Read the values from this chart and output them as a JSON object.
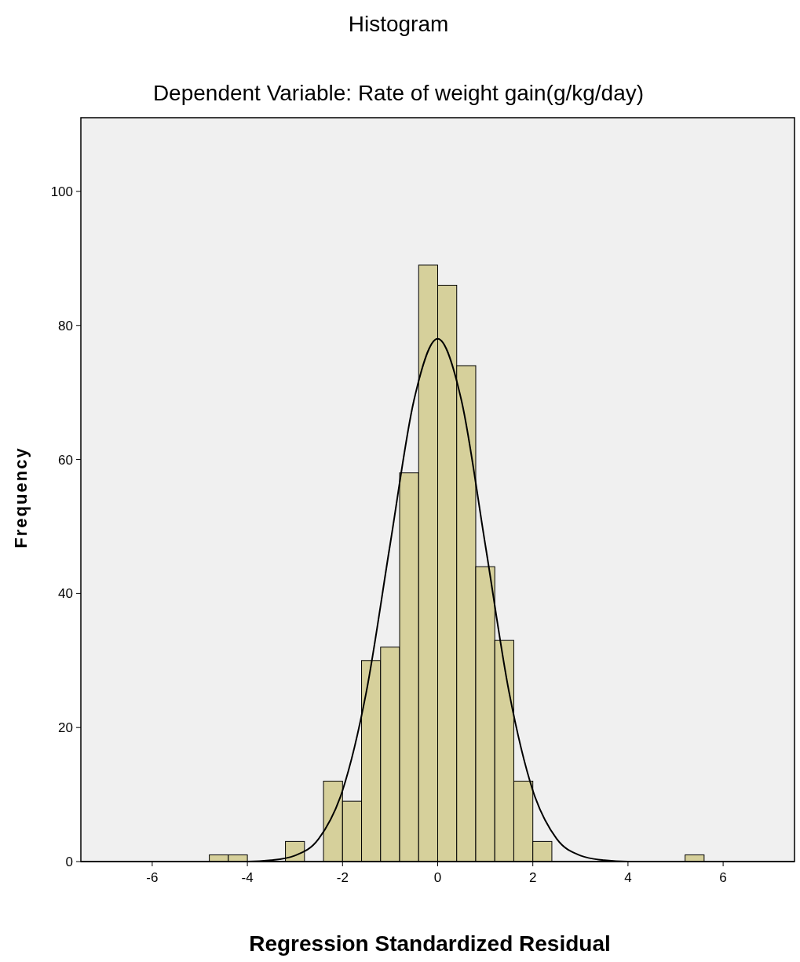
{
  "chart_data": {
    "type": "histogram",
    "title": "Histogram",
    "subtitle": "Dependent Variable: Rate of weight gain(g/kg/day)",
    "xlabel": "Regression Standardized Residual",
    "ylabel": "Frequency",
    "bins": [
      -4.8,
      -4.4,
      -4.0,
      -3.6,
      -3.2,
      -2.8,
      -2.4,
      -2.0,
      -1.6,
      -1.2,
      -0.8,
      -0.4,
      0,
      0.4,
      0.8,
      1.2,
      1.6,
      2.0,
      2.4,
      2.8,
      3.2,
      3.6,
      4.0,
      4.4,
      4.8,
      5.2,
      5.6
    ],
    "values": [
      1,
      1,
      0,
      0,
      3,
      0,
      12,
      9,
      30,
      32,
      58,
      89,
      86,
      74,
      44,
      33,
      12,
      3,
      0,
      0,
      0,
      0,
      0,
      0,
      0,
      1
    ],
    "color": "#d6d09b",
    "series": [
      {
        "type": "line",
        "color": "#000000",
        "x": [
          -7.5,
          -5,
          -4,
          -3.5,
          -3,
          -2.5,
          -2,
          -1.5,
          -1,
          -0.5,
          0,
          0.5,
          1,
          1.5,
          2,
          2.5,
          3,
          3.5,
          4,
          5,
          7.5
        ],
        "values": [
          0,
          0,
          0,
          0.2,
          0.9,
          3.4,
          10.6,
          25.3,
          47.3,
          68.8,
          78,
          68.8,
          47.3,
          25.3,
          10.6,
          3.4,
          0.9,
          0.2,
          0,
          0,
          0
        ]
      }
    ],
    "xlim": [
      -7.5,
      7.5
    ],
    "ylim": [
      0,
      111
    ],
    "xticks": [
      -6,
      -4,
      -2,
      0,
      2,
      4,
      6
    ],
    "yticks": [
      0,
      20,
      40,
      60,
      80,
      100
    ],
    "grid": false
  }
}
